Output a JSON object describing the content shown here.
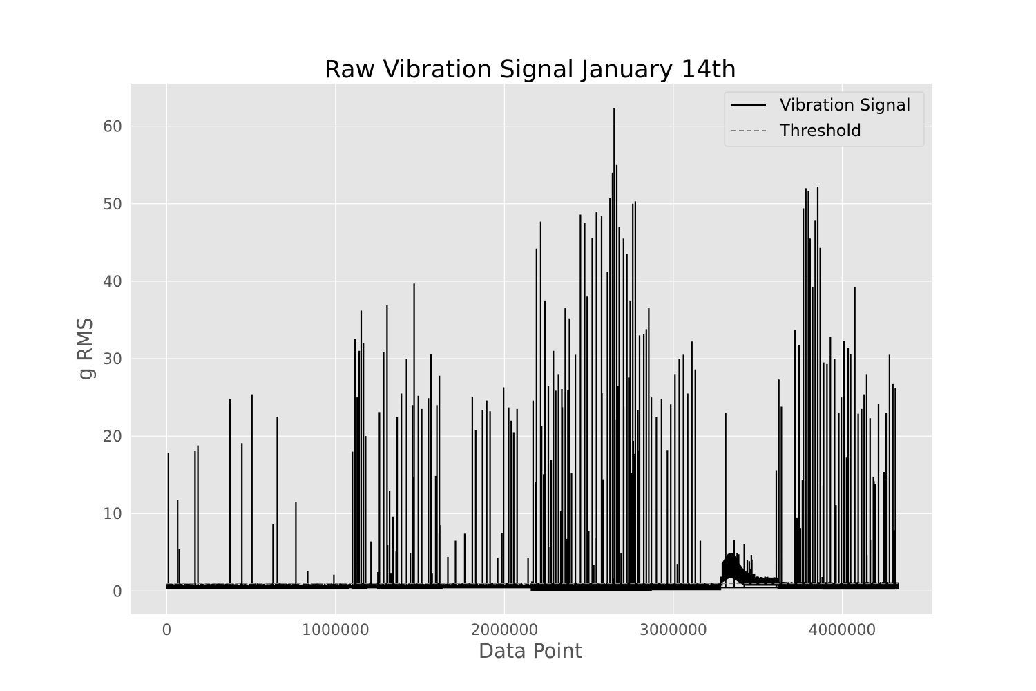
{
  "chart_data": {
    "type": "line",
    "title": "Raw Vibration Signal January 14th",
    "xlabel": "Data Point",
    "ylabel": "g RMS",
    "xlim": [
      -210000,
      4530000
    ],
    "ylim": [
      -3,
      65.5
    ],
    "x_ticks": [
      0,
      1000000,
      2000000,
      3000000,
      4000000
    ],
    "y_ticks": [
      0,
      10,
      20,
      30,
      40,
      50,
      60
    ],
    "grid": true,
    "legend_position": "top-right",
    "colors": {
      "plot_background": "#e5e5e5",
      "grid": "#ffffff",
      "signal": "#000000",
      "threshold": "#808080"
    },
    "series": [
      {
        "name": "Vibration Signal",
        "style": "solid",
        "baseline_segments": [
          [
            0,
            0.3,
            0.7
          ],
          [
            1080000,
            0.35,
            0.75
          ],
          [
            2160000,
            0.1,
            0.8
          ],
          [
            3280000,
            0.7,
            1.6
          ],
          [
            3620000,
            0.3,
            0.9
          ],
          [
            4320000,
            0.3,
            0.9
          ]
        ],
        "spikes": [
          [
            10000,
            17.8
          ],
          [
            65000,
            11.8
          ],
          [
            75000,
            5.4
          ],
          [
            168000,
            18.1
          ],
          [
            185000,
            18.8
          ],
          [
            375000,
            24.8
          ],
          [
            445000,
            19.1
          ],
          [
            505000,
            25.4
          ],
          [
            630000,
            8.6
          ],
          [
            655000,
            22.5
          ],
          [
            765000,
            11.5
          ],
          [
            835000,
            2.6
          ],
          [
            990000,
            2.1
          ],
          [
            1100000,
            18.0
          ],
          [
            1115000,
            32.5
          ],
          [
            1128000,
            25.0
          ],
          [
            1140000,
            31.0
          ],
          [
            1152000,
            36.2
          ],
          [
            1165000,
            32.0
          ],
          [
            1178000,
            20.0
          ],
          [
            1210000,
            6.4
          ],
          [
            1260000,
            23.1
          ],
          [
            1285000,
            30.8
          ],
          [
            1305000,
            36.9
          ],
          [
            1340000,
            9.6
          ],
          [
            1365000,
            22.5
          ],
          [
            1390000,
            25.5
          ],
          [
            1420000,
            30.0
          ],
          [
            1455000,
            24.0
          ],
          [
            1465000,
            39.7
          ],
          [
            1490000,
            25.2
          ],
          [
            1510000,
            23.5
          ],
          [
            1550000,
            24.9
          ],
          [
            1565000,
            30.6
          ],
          [
            1600000,
            24.0
          ],
          [
            1615000,
            27.8
          ],
          [
            1665000,
            4.4
          ],
          [
            1710000,
            6.5
          ],
          [
            1765000,
            7.4
          ],
          [
            1810000,
            25.1
          ],
          [
            1830000,
            20.8
          ],
          [
            1870000,
            23.4
          ],
          [
            1895000,
            24.6
          ],
          [
            1915000,
            23.2
          ],
          [
            1960000,
            4.3
          ],
          [
            1985000,
            7.5
          ],
          [
            1995000,
            26.3
          ],
          [
            2025000,
            23.7
          ],
          [
            2040000,
            22.0
          ],
          [
            2055000,
            20.5
          ],
          [
            2075000,
            23.5
          ],
          [
            2140000,
            4.3
          ],
          [
            2170000,
            24.6
          ],
          [
            2190000,
            44.2
          ],
          [
            2215000,
            47.7
          ],
          [
            2240000,
            37.5
          ],
          [
            2260000,
            26.5
          ],
          [
            2290000,
            31.0
          ],
          [
            2320000,
            28.0
          ],
          [
            2360000,
            36.5
          ],
          [
            2385000,
            35.2
          ],
          [
            2420000,
            30.5
          ],
          [
            2450000,
            48.6
          ],
          [
            2475000,
            47.5
          ],
          [
            2490000,
            38.0
          ],
          [
            2520000,
            45.6
          ],
          [
            2545000,
            48.9
          ],
          [
            2575000,
            48.4
          ],
          [
            2610000,
            41.2
          ],
          [
            2625000,
            50.7
          ],
          [
            2640000,
            54.0
          ],
          [
            2650000,
            62.3
          ],
          [
            2665000,
            55.0
          ],
          [
            2680000,
            47.0
          ],
          [
            2705000,
            45.5
          ],
          [
            2725000,
            43.5
          ],
          [
            2745000,
            37.5
          ],
          [
            2760000,
            50.0
          ],
          [
            2775000,
            50.3
          ],
          [
            2800000,
            33.0
          ],
          [
            2825000,
            33.2
          ],
          [
            2840000,
            33.8
          ],
          [
            2855000,
            36.5
          ],
          [
            2870000,
            25.0
          ],
          [
            2900000,
            22.5
          ],
          [
            2930000,
            24.8
          ],
          [
            2965000,
            18.2
          ],
          [
            2985000,
            24.1
          ],
          [
            3010000,
            28.0
          ],
          [
            3035000,
            30.0
          ],
          [
            3060000,
            30.5
          ],
          [
            3085000,
            25.5
          ],
          [
            3110000,
            32.2
          ],
          [
            3130000,
            28.6
          ],
          [
            3160000,
            6.5
          ],
          [
            3310000,
            23.0
          ],
          [
            3360000,
            6.6
          ],
          [
            3420000,
            6.1
          ],
          [
            3610000,
            15.6
          ],
          [
            3625000,
            27.3
          ],
          [
            3640000,
            23.8
          ],
          [
            3720000,
            33.7
          ],
          [
            3745000,
            31.7
          ],
          [
            3770000,
            49.4
          ],
          [
            3785000,
            52.0
          ],
          [
            3800000,
            51.6
          ],
          [
            3810000,
            45.5
          ],
          [
            3825000,
            39.2
          ],
          [
            3840000,
            47.8
          ],
          [
            3855000,
            52.2
          ],
          [
            3870000,
            44.3
          ],
          [
            3890000,
            29.5
          ],
          [
            3910000,
            29.3
          ],
          [
            3930000,
            32.8
          ],
          [
            3955000,
            30.0
          ],
          [
            3980000,
            23.0
          ],
          [
            3995000,
            25.0
          ],
          [
            4010000,
            32.3
          ],
          [
            4035000,
            31.4
          ],
          [
            4050000,
            30.6
          ],
          [
            4075000,
            39.2
          ],
          [
            4095000,
            22.9
          ],
          [
            4115000,
            23.5
          ],
          [
            4130000,
            25.4
          ],
          [
            4145000,
            28.0
          ],
          [
            4165000,
            22.3
          ],
          [
            4195000,
            13.8
          ],
          [
            4215000,
            24.2
          ],
          [
            4260000,
            23.0
          ],
          [
            4280000,
            30.5
          ],
          [
            4300000,
            26.8
          ],
          [
            4315000,
            26.2
          ]
        ],
        "dense_regions": [
          [
            1100000,
            1185000,
            0.3,
            24,
            0.05
          ],
          [
            1250000,
            1630000,
            0.3,
            15,
            0.08
          ],
          [
            2160000,
            2790000,
            0.0,
            28,
            0.14
          ],
          [
            2790000,
            2870000,
            0.0,
            22,
            0.11
          ],
          [
            2970000,
            3140000,
            0.3,
            18,
            0.07
          ],
          [
            3290000,
            3480000,
            0.8,
            4.5,
            0.16
          ],
          [
            3700000,
            3880000,
            0.3,
            28,
            0.15
          ],
          [
            3880000,
            4320000,
            0.2,
            20,
            0.1
          ]
        ]
      },
      {
        "name": "Threshold",
        "style": "dashed",
        "y": 1.0,
        "x_range": [
          0,
          4330000
        ]
      }
    ]
  }
}
